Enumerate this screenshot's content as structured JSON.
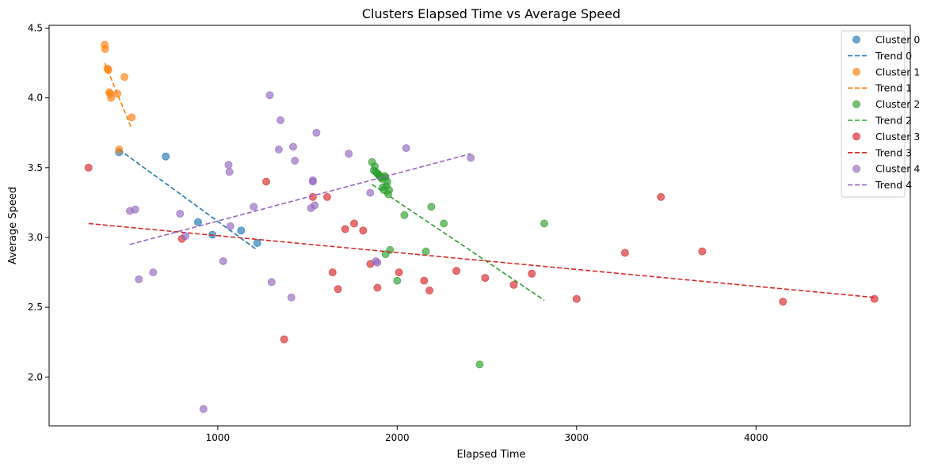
{
  "chart_data": {
    "type": "scatter",
    "title": "Clusters Elapsed Time vs Average Speed",
    "xlabel": "Elapsed Time",
    "ylabel": "Average Speed",
    "xlim": [
      60,
      4860
    ],
    "ylim": [
      1.65,
      4.52
    ],
    "xticks": [
      1000,
      2000,
      3000,
      4000
    ],
    "yticks": [
      2.0,
      2.5,
      3.0,
      3.5,
      4.0,
      4.5
    ],
    "xtick_labels": [
      "1000",
      "2000",
      "3000",
      "4000"
    ],
    "ytick_labels": [
      "2.0",
      "2.5",
      "3.0",
      "3.5",
      "4.0",
      "4.5"
    ],
    "grid": false,
    "legend_position": "top-right",
    "series": [
      {
        "name": "Cluster 0",
        "trend_name": "Trend 0",
        "color": "#1f77b4",
        "points": [
          [
            450,
            3.61
          ],
          [
            710,
            3.58
          ],
          [
            890,
            3.11
          ],
          [
            970,
            3.02
          ],
          [
            1130,
            3.05
          ],
          [
            1220,
            2.96
          ]
        ],
        "trend": [
          [
            450,
            3.63
          ],
          [
            1220,
            2.91
          ]
        ]
      },
      {
        "name": "Cluster 1",
        "trend_name": "Trend 1",
        "color": "#ff7f0e",
        "points": [
          [
            370,
            4.38
          ],
          [
            372,
            4.35
          ],
          [
            385,
            4.21
          ],
          [
            390,
            4.2
          ],
          [
            395,
            4.04
          ],
          [
            400,
            4.03
          ],
          [
            405,
            4.0
          ],
          [
            440,
            4.03
          ],
          [
            450,
            3.63
          ],
          [
            480,
            4.15
          ],
          [
            520,
            3.86
          ]
        ],
        "trend": [
          [
            370,
            4.25
          ],
          [
            520,
            3.78
          ]
        ]
      },
      {
        "name": "Cluster 2",
        "trend_name": "Trend 2",
        "color": "#2ca02c",
        "points": [
          [
            1860,
            3.54
          ],
          [
            1870,
            3.48
          ],
          [
            1875,
            3.51
          ],
          [
            1880,
            3.47
          ],
          [
            1890,
            3.46
          ],
          [
            1895,
            3.45
          ],
          [
            1900,
            3.44
          ],
          [
            1905,
            3.44
          ],
          [
            1910,
            3.43
          ],
          [
            1915,
            3.42
          ],
          [
            1920,
            3.36
          ],
          [
            1925,
            3.34
          ],
          [
            1930,
            3.44
          ],
          [
            1935,
            3.43
          ],
          [
            1940,
            3.37
          ],
          [
            1945,
            3.4
          ],
          [
            1950,
            3.31
          ],
          [
            1955,
            3.34
          ],
          [
            1935,
            2.88
          ],
          [
            1960,
            2.91
          ],
          [
            2000,
            2.69
          ],
          [
            2040,
            3.16
          ],
          [
            2160,
            2.9
          ],
          [
            2190,
            3.22
          ],
          [
            2260,
            3.1
          ],
          [
            2460,
            2.09
          ],
          [
            2820,
            3.1
          ]
        ],
        "trend": [
          [
            1860,
            3.38
          ],
          [
            2820,
            2.55
          ]
        ]
      },
      {
        "name": "Cluster 3",
        "trend_name": "Trend 3",
        "color": "#d62728",
        "points": [
          [
            280,
            3.5
          ],
          [
            800,
            2.99
          ],
          [
            1270,
            3.4
          ],
          [
            1370,
            2.27
          ],
          [
            1530,
            3.29
          ],
          [
            1610,
            3.29
          ],
          [
            1640,
            2.75
          ],
          [
            1670,
            2.63
          ],
          [
            1710,
            3.06
          ],
          [
            1760,
            3.1
          ],
          [
            1810,
            3.05
          ],
          [
            1850,
            2.81
          ],
          [
            1890,
            2.64
          ],
          [
            2010,
            2.75
          ],
          [
            2150,
            2.69
          ],
          [
            2180,
            2.62
          ],
          [
            2330,
            2.76
          ],
          [
            2490,
            2.71
          ],
          [
            2650,
            2.66
          ],
          [
            2750,
            2.74
          ],
          [
            3000,
            2.56
          ],
          [
            3270,
            2.89
          ],
          [
            3470,
            3.29
          ],
          [
            3700,
            2.9
          ],
          [
            4150,
            2.54
          ],
          [
            4660,
            2.56
          ]
        ],
        "trend": [
          [
            280,
            3.1
          ],
          [
            4660,
            2.57
          ]
        ]
      },
      {
        "name": "Cluster 4",
        "trend_name": "Trend 4",
        "color": "#9467bd",
        "points": [
          [
            510,
            3.19
          ],
          [
            540,
            3.2
          ],
          [
            560,
            2.7
          ],
          [
            640,
            2.75
          ],
          [
            790,
            3.17
          ],
          [
            820,
            3.01
          ],
          [
            920,
            1.77
          ],
          [
            1030,
            2.83
          ],
          [
            1060,
            3.52
          ],
          [
            1065,
            3.47
          ],
          [
            1070,
            3.08
          ],
          [
            1200,
            3.22
          ],
          [
            1290,
            4.02
          ],
          [
            1300,
            2.68
          ],
          [
            1340,
            3.63
          ],
          [
            1350,
            3.84
          ],
          [
            1410,
            2.57
          ],
          [
            1420,
            3.65
          ],
          [
            1430,
            3.55
          ],
          [
            1520,
            3.21
          ],
          [
            1530,
            3.4
          ],
          [
            1530,
            3.41
          ],
          [
            1540,
            3.23
          ],
          [
            1550,
            3.75
          ],
          [
            1730,
            3.6
          ],
          [
            1850,
            3.32
          ],
          [
            1880,
            2.83
          ],
          [
            1890,
            2.82
          ],
          [
            2050,
            3.64
          ],
          [
            2410,
            3.57
          ]
        ],
        "trend": [
          [
            510,
            2.95
          ],
          [
            2410,
            3.6
          ]
        ]
      }
    ]
  }
}
